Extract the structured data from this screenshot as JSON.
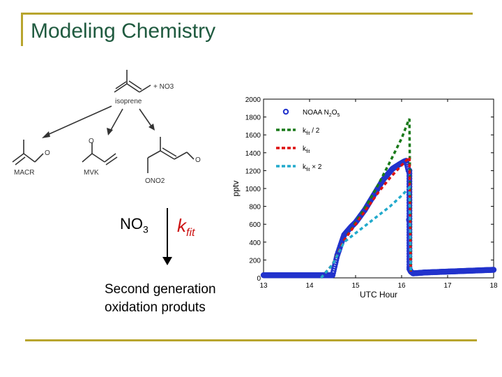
{
  "slide": {
    "title": "Modeling Chemistry",
    "second_line1": "Second generation",
    "second_line2": "oxidation produts"
  },
  "scheme": {
    "reactant": "+ NO3",
    "isoprene": "isoprene",
    "products": [
      "MACR",
      "MVK",
      "ONO2"
    ],
    "oxygen": "O",
    "no3": "NO",
    "no3_sub": "3",
    "kfit": "k",
    "kfit_sub": "fit"
  },
  "chart_data": {
    "type": "line",
    "xlabel": "UTC Hour",
    "ylabel": "pptv",
    "xlim": [
      13,
      18
    ],
    "ylim": [
      0,
      2000
    ],
    "xticks": [
      "13",
      "14",
      "15",
      "16",
      "17",
      "18"
    ],
    "yticks": [
      "0",
      "200",
      "400",
      "600",
      "800",
      "1000",
      "1200",
      "1400",
      "1600",
      "1800",
      "2000"
    ],
    "legend_position": "top-left",
    "series": [
      {
        "name": "NOAA N2O5",
        "style": "circles",
        "color": "#2233cc",
        "x": [
          13.0,
          13.5,
          14.0,
          14.25,
          14.5,
          14.6,
          14.75,
          14.9,
          15.0,
          15.2,
          15.4,
          15.6,
          15.8,
          15.95,
          16.05,
          16.1,
          16.15,
          16.17,
          16.2,
          16.25,
          16.5,
          17.0,
          17.5,
          18.0
        ],
        "y": [
          30,
          30,
          30,
          30,
          30,
          250,
          480,
          570,
          620,
          760,
          930,
          1100,
          1220,
          1270,
          1300,
          1310,
          1200,
          100,
          70,
          50,
          60,
          70,
          80,
          90
        ]
      },
      {
        "name": "kfit / 2",
        "style": "dashed",
        "color": "#1a7a1a",
        "x": [
          14.25,
          14.5,
          14.75,
          15.0,
          15.25,
          15.5,
          15.75,
          16.0,
          16.15,
          16.17,
          16.2
        ],
        "y": [
          0,
          150,
          420,
          620,
          820,
          1050,
          1300,
          1560,
          1760,
          1780,
          70
        ]
      },
      {
        "name": "kfit",
        "style": "dashed",
        "color": "#dd1111",
        "x": [
          14.25,
          14.5,
          14.75,
          15.0,
          15.25,
          15.5,
          15.75,
          16.0,
          16.15,
          16.17,
          16.2
        ],
        "y": [
          0,
          150,
          420,
          600,
          780,
          960,
          1120,
          1260,
          1340,
          1350,
          70
        ]
      },
      {
        "name": "kfit x 2",
        "style": "dashed",
        "color": "#22aacc",
        "x": [
          14.25,
          14.5,
          14.75,
          15.0,
          15.25,
          15.5,
          15.75,
          16.0,
          16.15,
          16.17,
          16.2
        ],
        "y": [
          0,
          150,
          400,
          500,
          600,
          700,
          800,
          920,
          1000,
          1010,
          70
        ]
      }
    ],
    "legend": [
      {
        "label": "NOAA N",
        "sub1": "2",
        "mid": "O",
        "sub2": "5"
      },
      {
        "label": "k",
        "sub1": "fit",
        "mid": " / 2",
        "sub2": ""
      },
      {
        "label": "k",
        "sub1": "fit",
        "mid": "",
        "sub2": ""
      },
      {
        "label": "k",
        "sub1": "fit",
        "mid": " × 2",
        "sub2": ""
      }
    ]
  }
}
